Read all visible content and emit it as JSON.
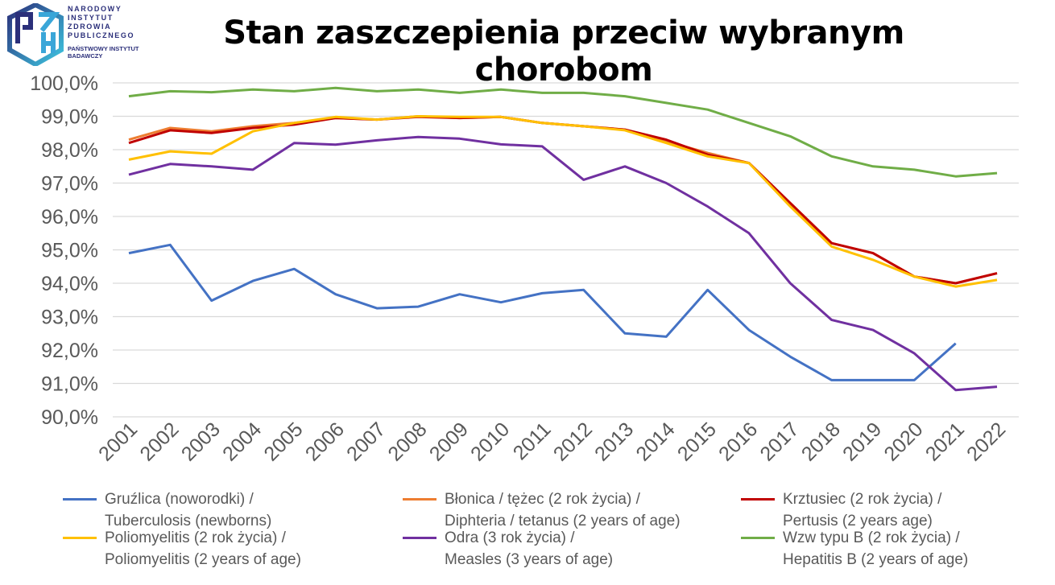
{
  "logo": {
    "lines": [
      "NARODOWY",
      "INSTYTUT",
      "ZDROWIA",
      "PUBLICZNEGO"
    ],
    "sub": [
      "PAŃSTWOWY INSTYTUT",
      "BADAWCZY"
    ]
  },
  "chart_data": {
    "type": "line",
    "title": "Stan zaszczepienia przeciw wybranym chorobom",
    "ylim": [
      90,
      100
    ],
    "yticks": [
      "90,0%",
      "91,0%",
      "92,0%",
      "93,0%",
      "94,0%",
      "95,0%",
      "96,0%",
      "97,0%",
      "98,0%",
      "99,0%",
      "100,0%"
    ],
    "grid": true,
    "legend": "bottom",
    "categories": [
      "2001",
      "2002",
      "2003",
      "2004",
      "2005",
      "2006",
      "2007",
      "2008",
      "2009",
      "2010",
      "2011",
      "2012",
      "2013",
      "2014",
      "2015",
      "2016",
      "2017",
      "2018",
      "2019",
      "2020",
      "2021",
      "2022"
    ],
    "series": [
      {
        "name": "Gruźlica (noworodki) / Tuberculosis (newborns)",
        "l1": "Gruźlica (noworodki) /",
        "l2": "Tuberculosis (newborns)",
        "color": "#4472c4",
        "values": [
          94.9,
          95.15,
          93.48,
          94.07,
          94.43,
          93.67,
          93.25,
          93.3,
          93.67,
          93.43,
          93.7,
          93.8,
          92.5,
          92.4,
          93.8,
          92.6,
          91.8,
          91.1,
          91.1,
          91.1,
          92.2,
          null
        ]
      },
      {
        "name": "Błonica / tężec (2 rok życia) / Diphteria / tetanus (2 years of age)",
        "l1": "Błonica / tężec (2 rok życia) /",
        "l2": "Diphteria / tetanus (2 years of age)",
        "color": "#ed7d31",
        "values": [
          98.3,
          98.65,
          98.55,
          98.7,
          98.8,
          98.95,
          98.9,
          99.0,
          98.95,
          98.98,
          98.8,
          98.7,
          98.6,
          98.25,
          97.9,
          97.6,
          96.4,
          95.2,
          94.9,
          94.2,
          94.0,
          94.3
        ]
      },
      {
        "name": "Krztusiec (2 rok życia) / Pertusis (2 years age)",
        "l1": "Krztusiec (2 rok życia) /",
        "l2": "Pertusis (2 years age)",
        "color": "#c00000",
        "values": [
          98.2,
          98.58,
          98.5,
          98.65,
          98.75,
          98.95,
          98.9,
          98.98,
          98.95,
          98.98,
          98.8,
          98.7,
          98.6,
          98.3,
          97.85,
          97.6,
          96.4,
          95.2,
          94.9,
          94.2,
          94.0,
          94.3
        ]
      },
      {
        "name": "Poliomyelitis (2 rok życia) / Poliomyelitis (2 years of age)",
        "l1": "Poliomyelitis (2 rok życia) /",
        "l2": "Poliomyelitis (2 years of age)",
        "color": "#ffc000",
        "values": [
          97.7,
          97.95,
          97.88,
          98.55,
          98.8,
          98.98,
          98.9,
          99.0,
          98.98,
          98.98,
          98.8,
          98.7,
          98.58,
          98.2,
          97.8,
          97.6,
          96.3,
          95.1,
          94.7,
          94.2,
          93.9,
          94.1
        ]
      },
      {
        "name": "Odra (3 rok życia) / Measles (3 years of age)",
        "l1": "Odra (3 rok życia) /",
        "l2": "Measles (3 years of age)",
        "color": "#7030a0",
        "values": [
          97.25,
          97.57,
          97.5,
          97.4,
          98.2,
          98.15,
          98.28,
          98.38,
          98.33,
          98.16,
          98.1,
          97.1,
          97.5,
          97.0,
          96.3,
          95.5,
          94.0,
          92.9,
          92.6,
          91.9,
          90.8,
          90.9
        ]
      },
      {
        "name": "Wzw typu B (2 rok życia) / Hepatitis B (2 years of age)",
        "l1": "Wzw typu B (2 rok życia) /",
        "l2": "Hepatitis B (2 years of age)",
        "color": "#70ad47",
        "values": [
          99.6,
          99.75,
          99.72,
          99.8,
          99.75,
          99.85,
          99.75,
          99.8,
          99.7,
          99.8,
          99.7,
          99.7,
          99.6,
          99.4,
          99.2,
          98.8,
          98.4,
          97.8,
          97.5,
          97.4,
          97.2,
          97.3
        ]
      }
    ]
  }
}
